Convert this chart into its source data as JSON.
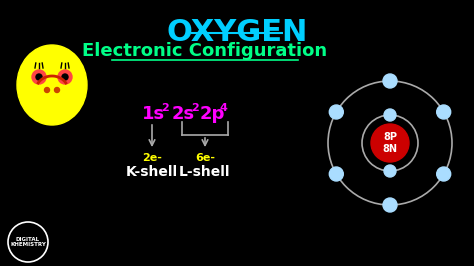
{
  "bg_color": "#000000",
  "title": "OXYGEN",
  "title_color": "#00cfff",
  "title_fontsize": 22,
  "subtitle": "Electronic Configuration",
  "subtitle_color": "#00ff88",
  "subtitle_fontsize": 13,
  "config_color": "#ff00ff",
  "kshell_label": "2e-",
  "lshell_label": "6e-",
  "kshell_name": "K-shell",
  "lshell_name": "L-shell",
  "shell_label_color": "#ffff00",
  "shell_name_color": "#ffffff",
  "nucleus_color": "#cc0000",
  "nucleus_text": "8P\n8N",
  "nucleus_text_color": "#ffffff",
  "orbit_color": "#aaaaaa",
  "electron_color": "#aaddff",
  "smiley_face_color": "#ffff00",
  "arrow_color": "#aaaaaa",
  "logo_text": "DIGITAL\nKHEMISTRY"
}
